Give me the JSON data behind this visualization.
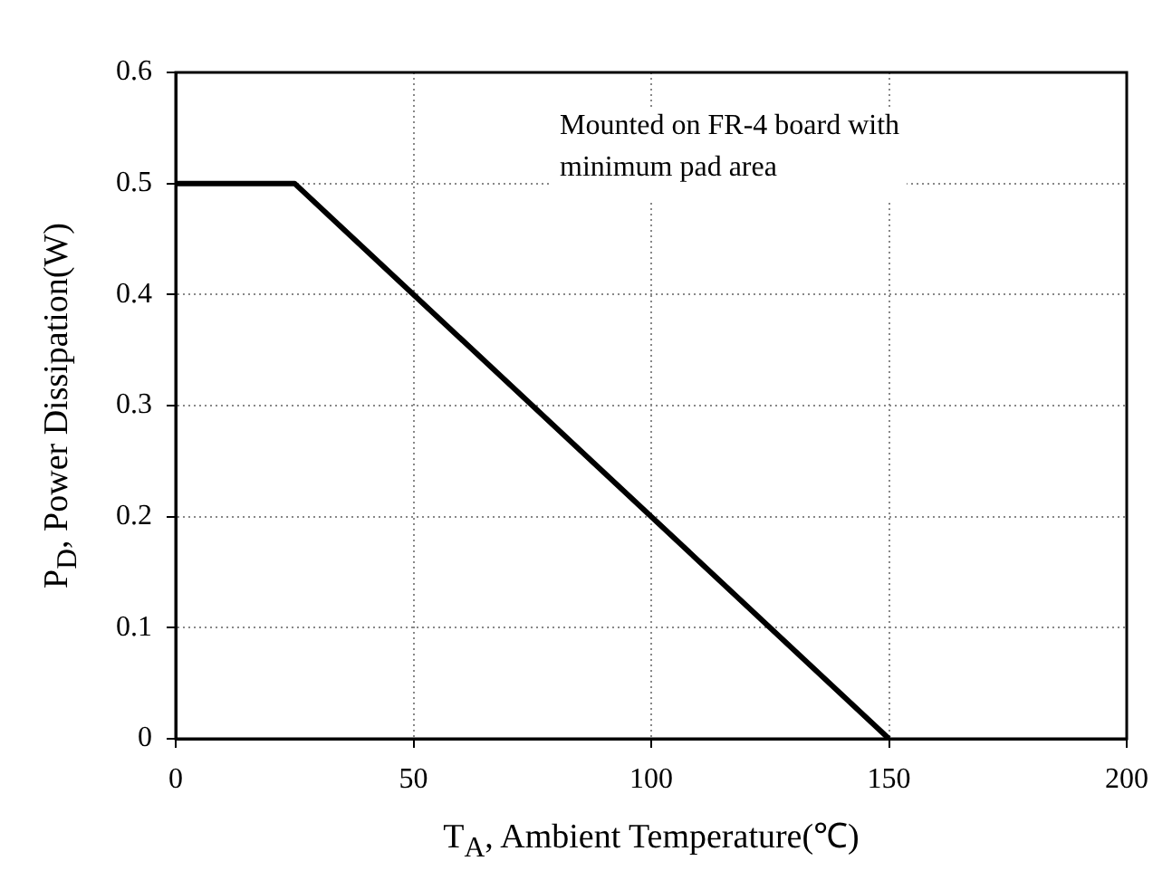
{
  "chart_data": {
    "type": "line",
    "xlabel": "T$_{A}$, Ambient Temperature(℃)",
    "ylabel": "P$_{D}$, Power Dissipation(W)",
    "x": [
      0,
      25,
      150
    ],
    "series": [
      {
        "color": "#000000",
        "values": [
          0.5,
          0.5,
          0
        ]
      }
    ],
    "xlim": [
      0,
      200
    ],
    "xticks": [
      0,
      50,
      100,
      150,
      200
    ],
    "ylim": [
      0,
      0.6
    ],
    "yticks": [
      0,
      0.1,
      0.2,
      0.3,
      0.4,
      0.5,
      0.6
    ],
    "grid": true,
    "marker": "none",
    "line_style": "solid",
    "legend": false,
    "annotations": [
      "Mounted on FR-4 board with minimum pad area"
    ]
  }
}
